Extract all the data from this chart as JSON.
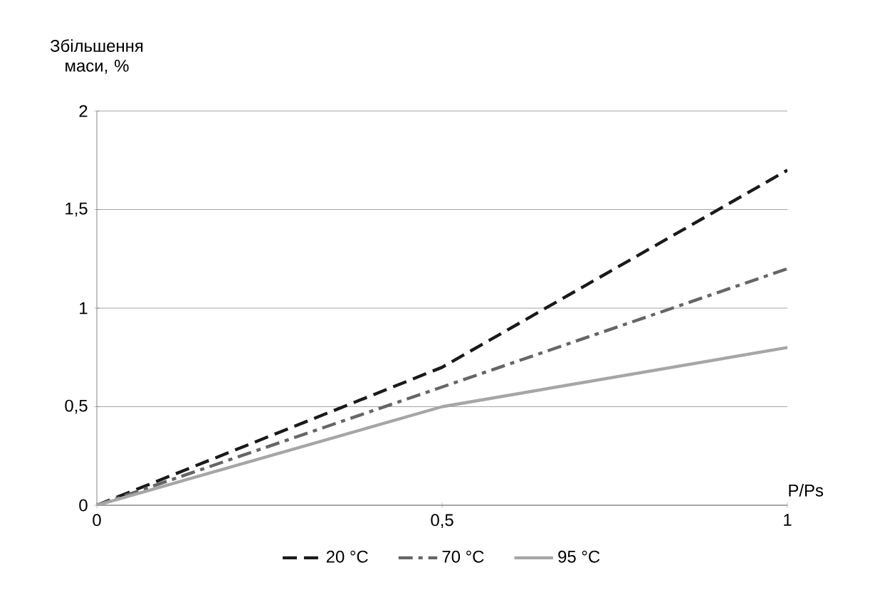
{
  "chart_data": {
    "type": "line",
    "ylabel": "Збільшення маси, %",
    "xlabel": "P/Ps",
    "x": [
      0,
      0.5,
      1
    ],
    "series": [
      {
        "name": "20 °C",
        "color": "#1a1a1a",
        "line_style": "dashed",
        "values": [
          0,
          0.7,
          1.7
        ]
      },
      {
        "name": "70 °C",
        "color": "#666666",
        "line_style": "dashed",
        "values": [
          0,
          0.6,
          1.2
        ]
      },
      {
        "name": "95 °C",
        "color": "#a6a6a6",
        "line_style": "solid",
        "values": [
          0,
          0.5,
          0.8
        ]
      }
    ],
    "xlim": [
      0,
      1
    ],
    "ylim": [
      0,
      2
    ],
    "xticks": [
      0,
      {
        "value": 0.5,
        "label": "0,5"
      },
      1
    ],
    "yticks": [
      0,
      {
        "value": 0.5,
        "label": "0,5"
      },
      1,
      {
        "value": 1.5,
        "label": "1,5"
      },
      2
    ],
    "grid": "y",
    "legend": "bottom",
    "marker": "none"
  }
}
